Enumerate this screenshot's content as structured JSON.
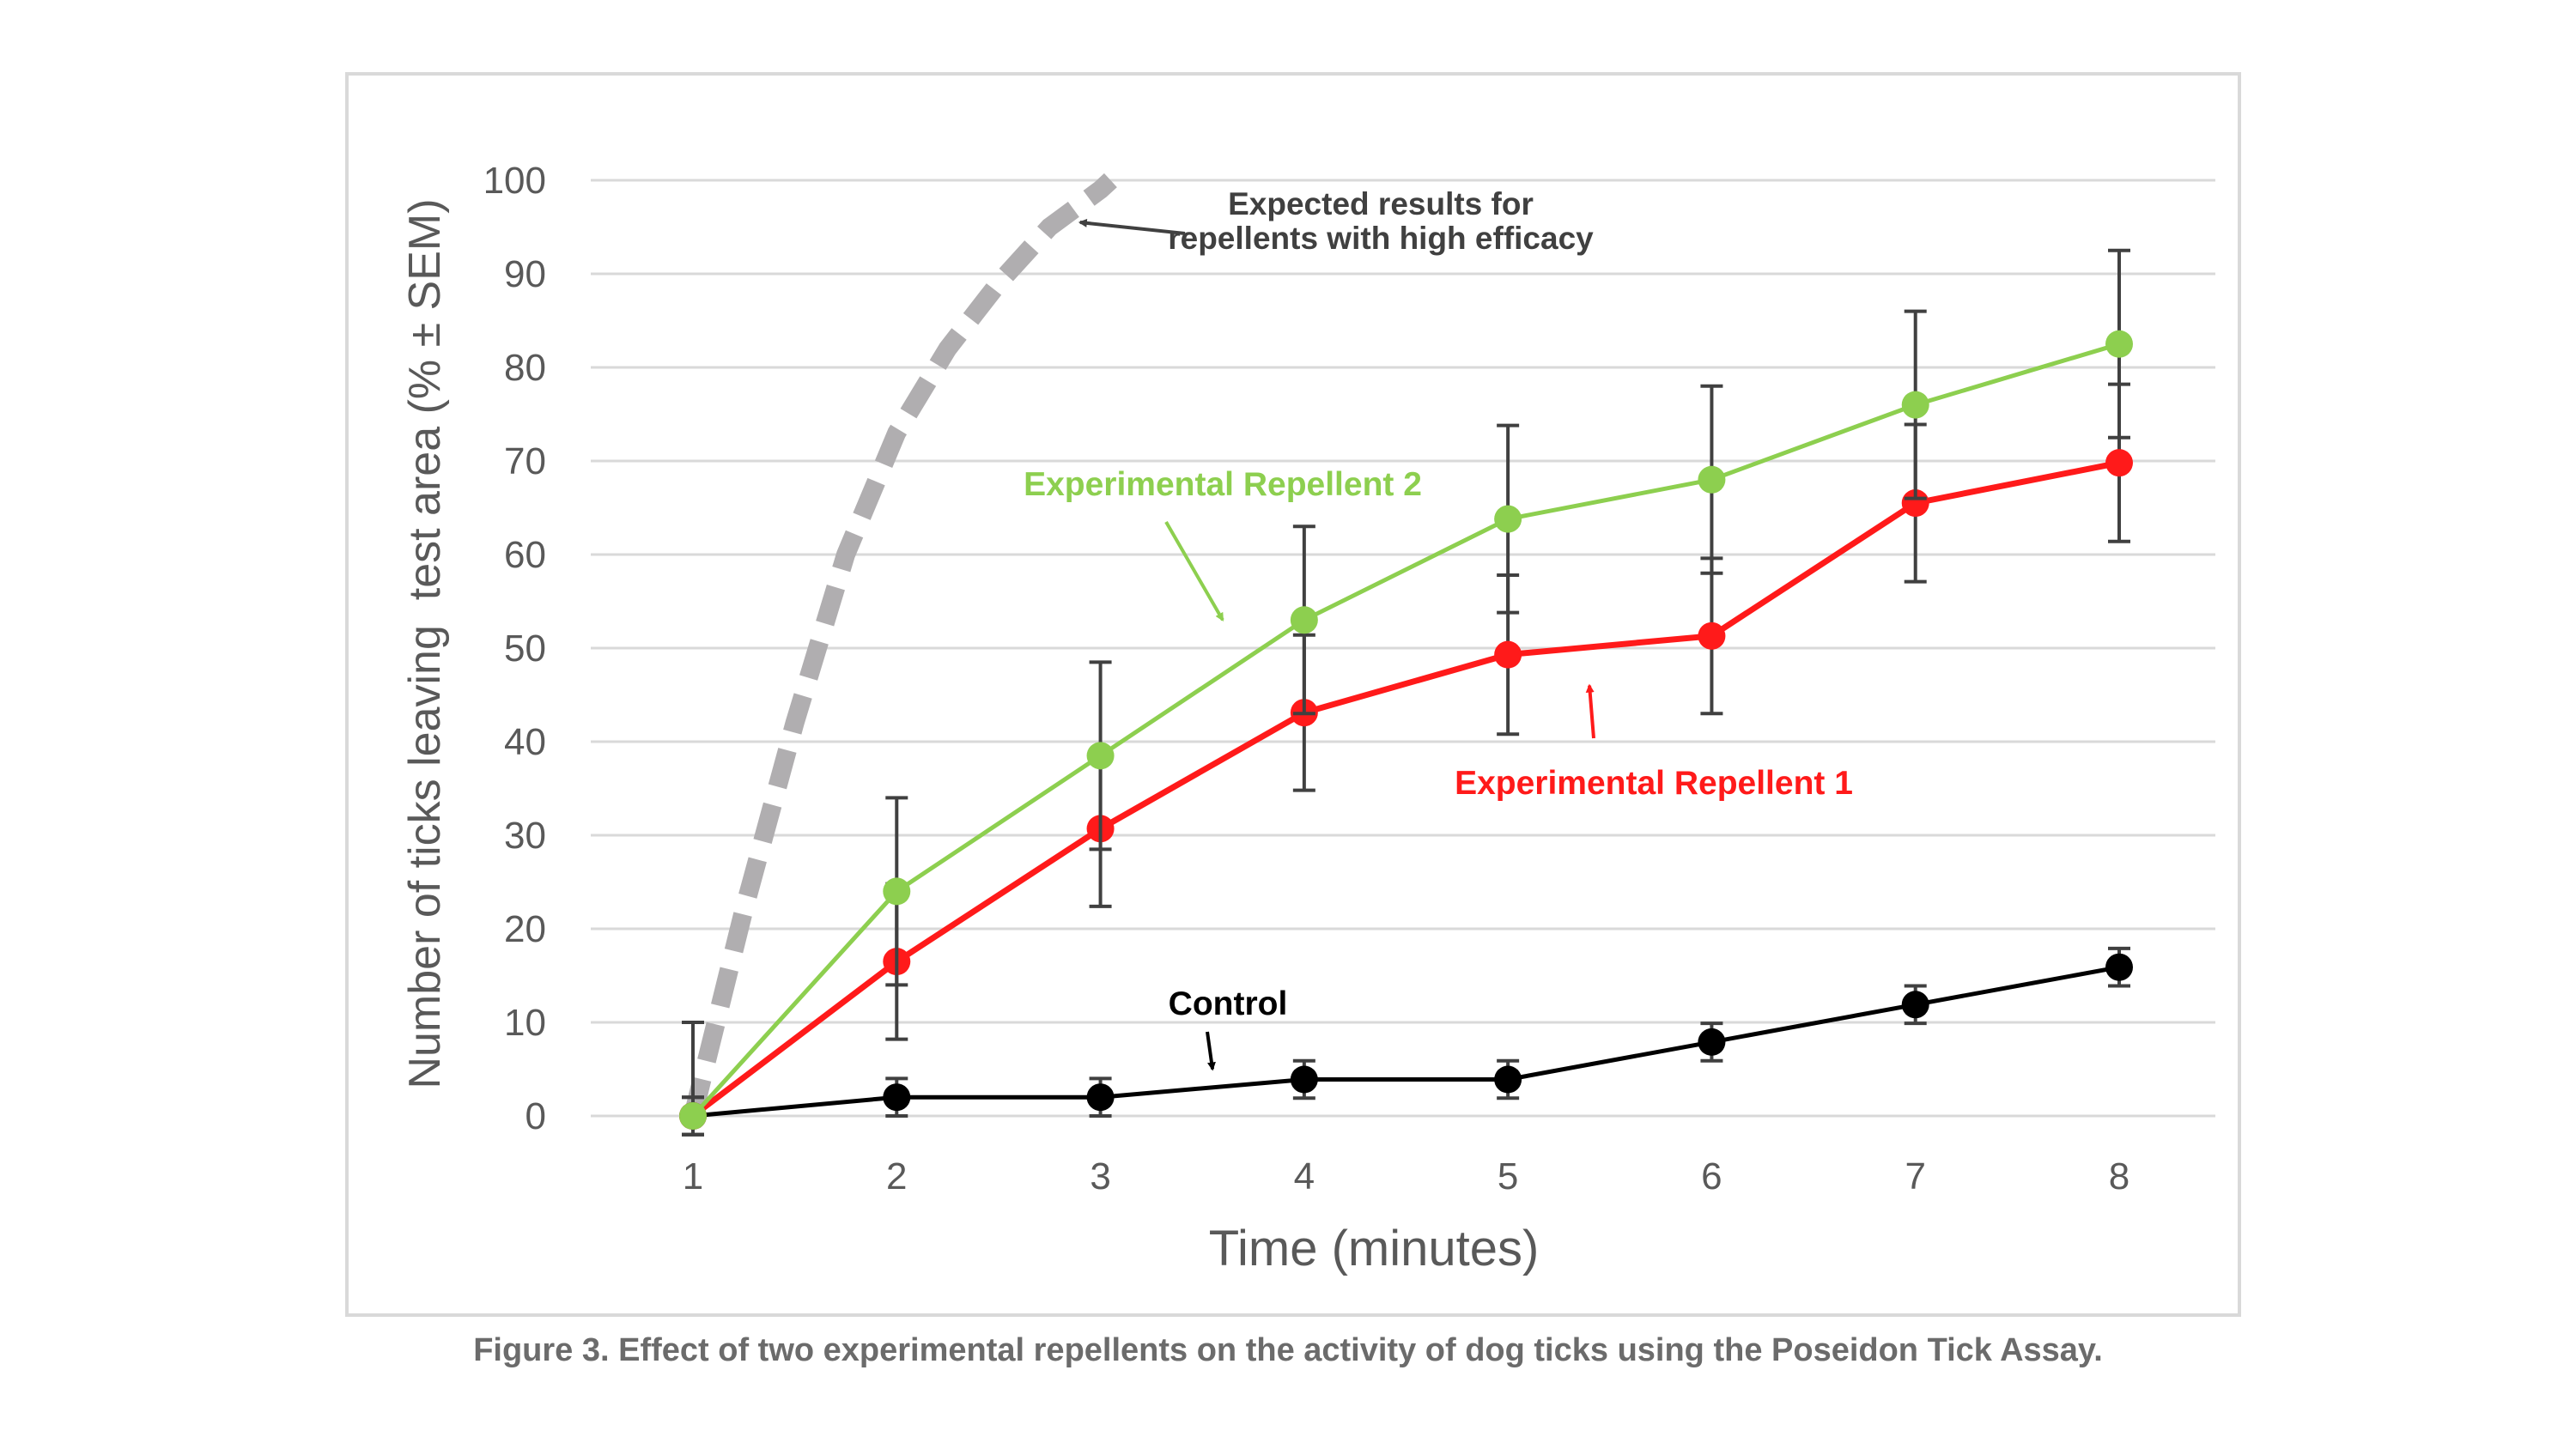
{
  "caption": "Figure 3. Effect of two experimental repellents on the activity of dog ticks using the Poseidon Tick Assay.",
  "chart_data": {
    "type": "line",
    "title": "",
    "xlabel": "Time (minutes)",
    "ylabel": "Number of ticks leaving  test area (% ± SEM)",
    "x": [
      1,
      2,
      3,
      4,
      5,
      6,
      7,
      8
    ],
    "ylim": [
      0,
      100
    ],
    "yticks": [
      0,
      10,
      20,
      30,
      40,
      50,
      60,
      70,
      80,
      90,
      100
    ],
    "grid": true,
    "series": [
      {
        "name": "Experimental Repellent 2",
        "color": "#8dcf4f",
        "values": [
          0,
          24,
          38.5,
          53,
          63.8,
          68,
          76,
          82.5
        ],
        "sem": [
          10,
          10,
          10,
          10,
          10,
          10,
          10,
          10
        ]
      },
      {
        "name": "Experimental Repellent 1",
        "color": "#ff1a1a",
        "values": [
          0,
          16.5,
          30.7,
          43.1,
          49.3,
          51.3,
          65.5,
          69.8
        ],
        "sem": [
          2,
          8.3,
          8.3,
          8.3,
          8.5,
          8.3,
          8.4,
          8.4
        ]
      },
      {
        "name": "Control",
        "color": "#000000",
        "values": [
          0,
          2,
          2,
          3.9,
          3.9,
          7.9,
          11.9,
          15.9
        ],
        "sem": [
          2,
          2,
          2,
          2,
          2,
          2,
          2,
          2
        ]
      },
      {
        "name": "Expected results for repellents with high efficacy",
        "color": "#b0aeb0",
        "style": "dashed",
        "x": [
          1,
          1.25,
          1.5,
          1.75,
          2,
          2.25,
          2.5,
          2.75,
          3,
          3.05
        ],
        "values": [
          0,
          22,
          42,
          60,
          73,
          82,
          89,
          95,
          99,
          100
        ]
      }
    ],
    "annotations": [
      {
        "text": [
          "Expected results for",
          "repellents with high efficacy"
        ],
        "color": "#404040",
        "arrow_to_x": 2.9,
        "arrow_to_y": 95.5
      },
      {
        "text": [
          "Experimental Repellent 2"
        ],
        "color": "#8dcf4f",
        "arrow_to_x": 3.6,
        "arrow_to_y": 53
      },
      {
        "text": [
          "Experimental Repellent 1"
        ],
        "color": "#ff1a1a",
        "arrow_to_x": 5.4,
        "arrow_to_y": 46
      },
      {
        "text": [
          "Control"
        ],
        "color": "#000000",
        "arrow_to_x": 3.55,
        "arrow_to_y": 5
      }
    ]
  }
}
